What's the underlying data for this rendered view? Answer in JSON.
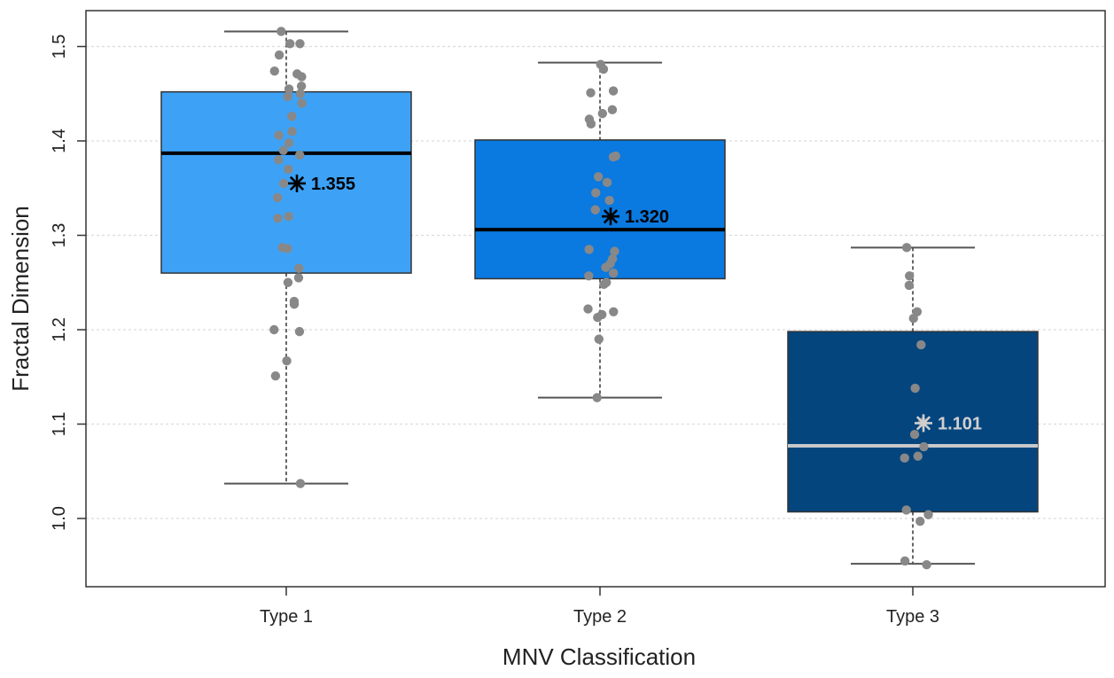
{
  "chart_data": {
    "type": "boxplot",
    "xlabel": "MNV Classification",
    "ylabel": "Fractal Dimension",
    "ylim": [
      0.945,
      1.53
    ],
    "yticks": [
      1.0,
      1.1,
      1.2,
      1.3,
      1.4,
      1.5
    ],
    "ytick_labels": [
      "1.0",
      "1.1",
      "1.2",
      "1.3",
      "1.4",
      "1.5"
    ],
    "grid": true,
    "groups": [
      {
        "name": "Type 1",
        "color": "#3da2f6",
        "median_color": "#000000",
        "mean_color": "#000000",
        "whisker_low": 1.037,
        "q1": 1.26,
        "median": 1.387,
        "q3": 1.452,
        "whisker_high": 1.516,
        "mean": 1.355,
        "mean_label": "1.355",
        "points": [
          1.516,
          1.503,
          1.503,
          1.491,
          1.474,
          1.471,
          1.468,
          1.458,
          1.455,
          1.45,
          1.447,
          1.44,
          1.426,
          1.41,
          1.406,
          1.398,
          1.39,
          1.385,
          1.38,
          1.37,
          1.355,
          1.34,
          1.32,
          1.318,
          1.287,
          1.286,
          1.265,
          1.255,
          1.25,
          1.23,
          1.227,
          1.2,
          1.198,
          1.167,
          1.151,
          1.037
        ]
      },
      {
        "name": "Type 2",
        "color": "#0a79e0",
        "median_color": "#000000",
        "mean_color": "#000000",
        "whisker_low": 1.128,
        "q1": 1.254,
        "median": 1.306,
        "q3": 1.401,
        "whisker_high": 1.483,
        "mean": 1.32,
        "mean_label": "1.320",
        "points": [
          1.481,
          1.476,
          1.453,
          1.451,
          1.433,
          1.429,
          1.423,
          1.418,
          1.384,
          1.383,
          1.362,
          1.356,
          1.345,
          1.337,
          1.327,
          1.285,
          1.283,
          1.275,
          1.27,
          1.266,
          1.26,
          1.257,
          1.25,
          1.248,
          1.222,
          1.219,
          1.216,
          1.213,
          1.19,
          1.128
        ]
      },
      {
        "name": "Type 3",
        "color": "#04457e",
        "median_color": "#c8c8c8",
        "mean_color": "#d0d0d0",
        "whisker_low": 0.952,
        "q1": 1.007,
        "median": 1.077,
        "q3": 1.198,
        "whisker_high": 1.287,
        "mean": 1.101,
        "mean_label": "1.101",
        "points": [
          1.287,
          1.257,
          1.247,
          1.219,
          1.212,
          1.184,
          1.138,
          1.102,
          1.089,
          1.076,
          1.066,
          1.064,
          1.009,
          1.004,
          0.997,
          0.955,
          0.951
        ]
      }
    ]
  }
}
